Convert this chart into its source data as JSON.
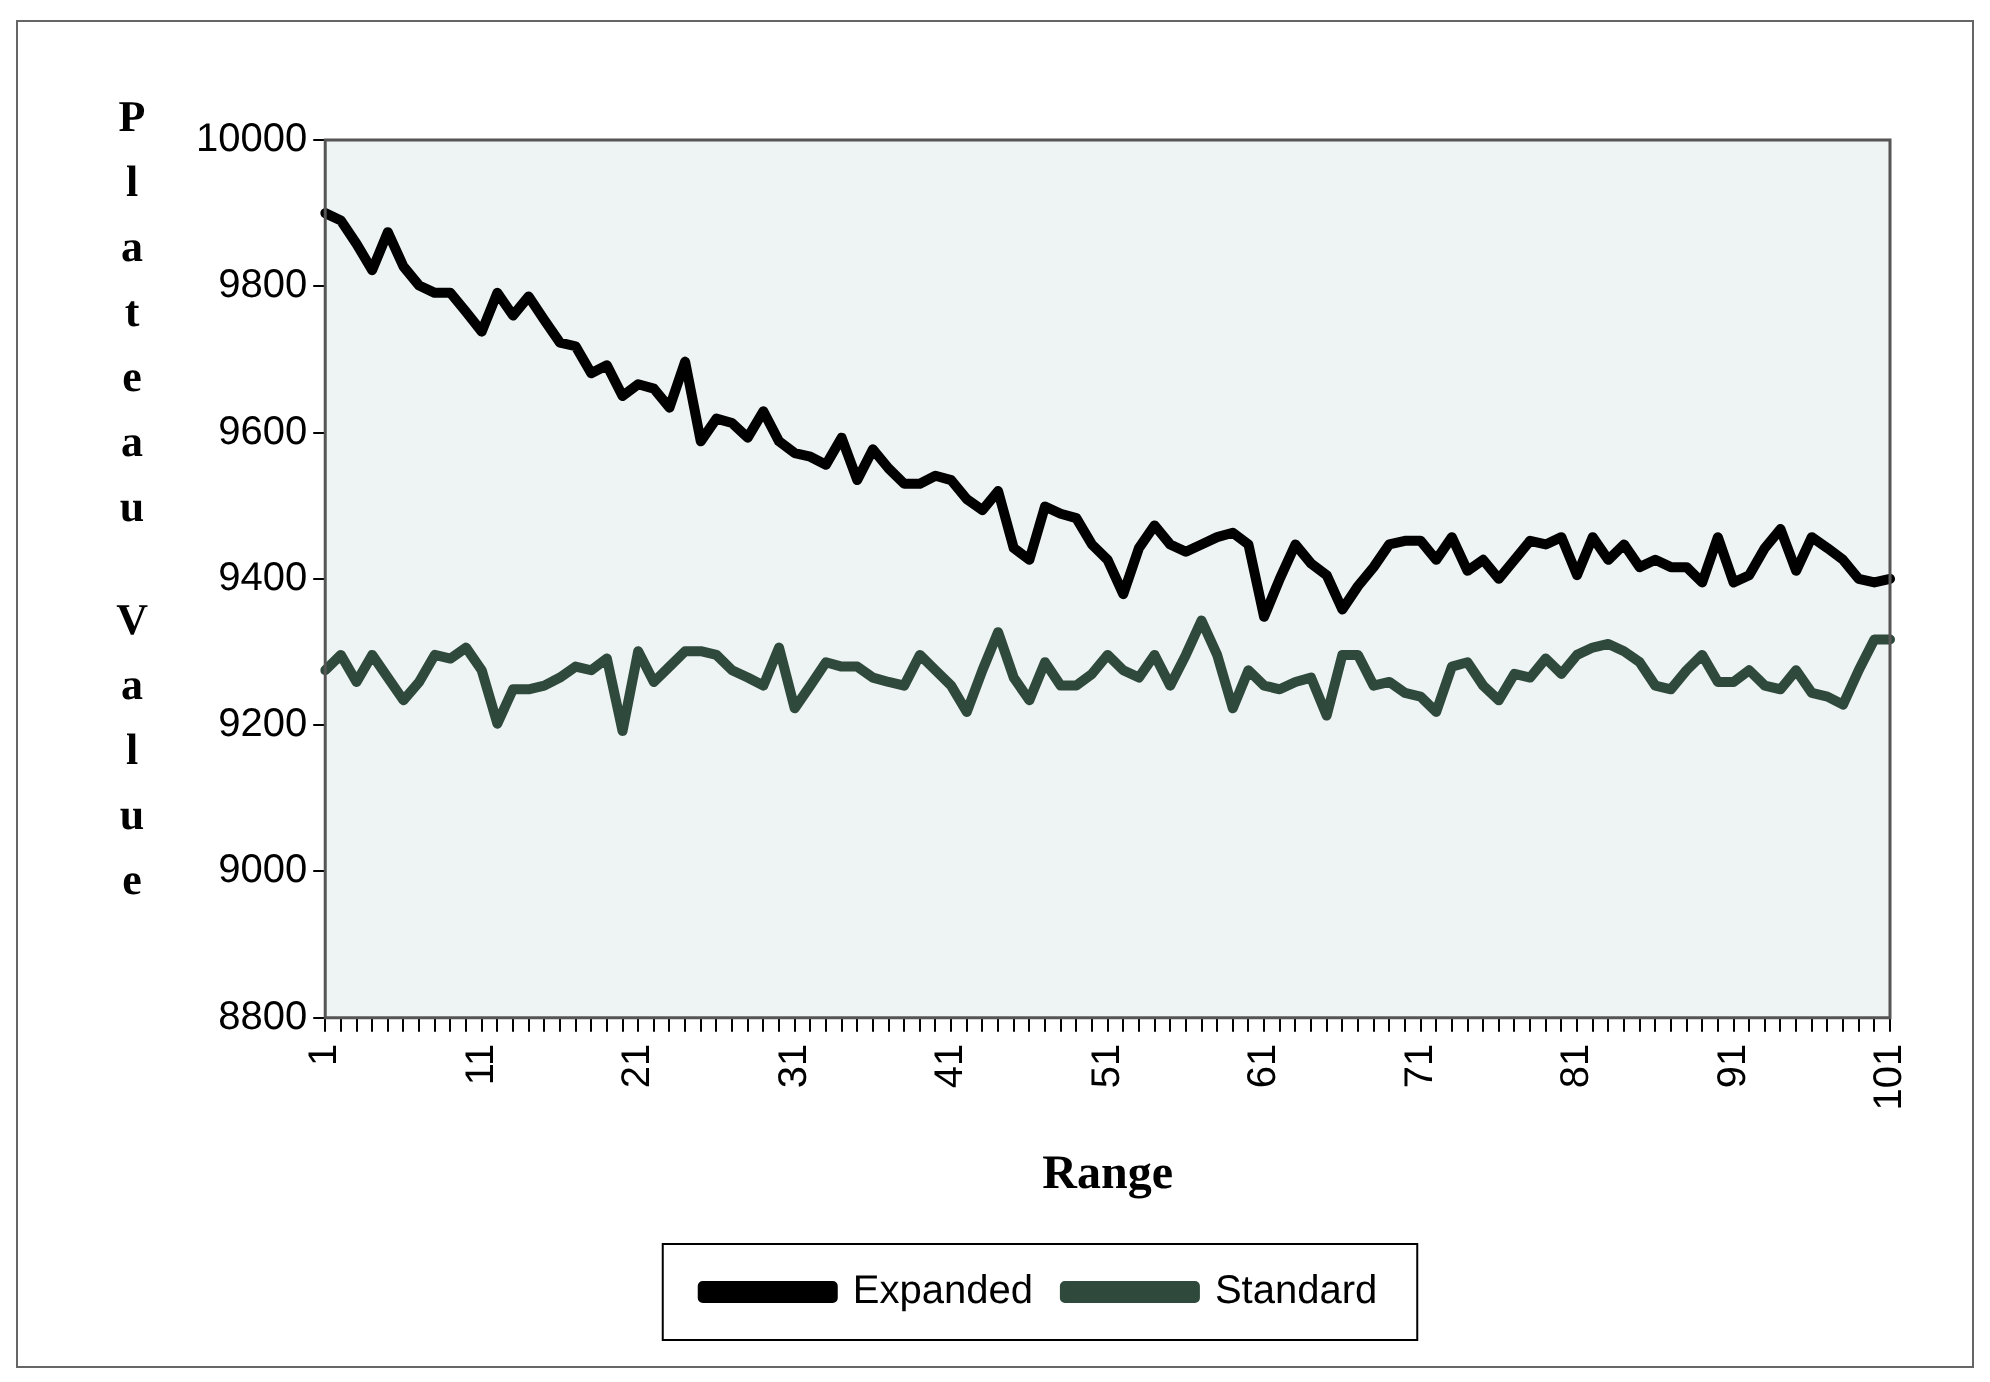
{
  "chart_data": {
    "type": "line",
    "xlabel": "Range",
    "ylabel": "Plateau Value",
    "categories": [
      "1",
      null,
      null,
      null,
      null,
      null,
      null,
      null,
      null,
      null,
      "11",
      null,
      null,
      null,
      null,
      null,
      null,
      null,
      null,
      null,
      "21",
      null,
      null,
      null,
      null,
      null,
      null,
      null,
      null,
      null,
      "31",
      null,
      null,
      null,
      null,
      null,
      null,
      null,
      null,
      null,
      "41",
      null,
      null,
      null,
      null,
      null,
      null,
      null,
      null,
      null,
      "51",
      null,
      null,
      null,
      null,
      null,
      null,
      null,
      null,
      null,
      "61",
      null,
      null,
      null,
      null,
      null,
      null,
      null,
      null,
      null,
      "71",
      null,
      null,
      null,
      null,
      null,
      null,
      null,
      null,
      null,
      "81",
      null,
      null,
      null,
      null,
      null,
      null,
      null,
      null,
      null,
      "91",
      null,
      null,
      null,
      null,
      null,
      null,
      null,
      null,
      null,
      "101"
    ],
    "series": [
      {
        "name": "Expanded",
        "color": "#000000",
        "values": [
          9900,
          9890,
          9858,
          9822,
          9874,
          9827,
          9801,
          9791,
          9791,
          9765,
          9738,
          9791,
          9760,
          9786,
          9754,
          9723,
          9718,
          9681,
          9692,
          9650,
          9666,
          9660,
          9634,
          9697,
          9588,
          9619,
          9613,
          9593,
          9629,
          9588,
          9572,
          9567,
          9556,
          9593,
          9535,
          9577,
          9551,
          9530,
          9530,
          9541,
          9535,
          9509,
          9494,
          9520,
          9442,
          9426,
          9499,
          9489,
          9483,
          9447,
          9426,
          9379,
          9442,
          9473,
          9447,
          9437,
          9447,
          9457,
          9463,
          9447,
          9348,
          9400,
          9447,
          9421,
          9405,
          9358,
          9390,
          9416,
          9447,
          9452,
          9452,
          9426,
          9457,
          9411,
          9426,
          9400,
          9426,
          9452,
          9447,
          9457,
          9405,
          9457,
          9426,
          9447,
          9416,
          9426,
          9416,
          9416,
          9395,
          9457,
          9395,
          9405,
          9442,
          9468,
          9411,
          9457,
          9442,
          9426,
          9400,
          9395,
          9400
        ]
      },
      {
        "name": "Standard",
        "color": "#2f4a3c",
        "values": [
          9275,
          9296,
          9259,
          9296,
          9265,
          9234,
          9259,
          9296,
          9291,
          9306,
          9275,
          9202,
          9249,
          9249,
          9254,
          9265,
          9280,
          9275,
          9291,
          9192,
          9301,
          9259,
          9280,
          9301,
          9301,
          9296,
          9275,
          9265,
          9254,
          9306,
          9223,
          9254,
          9286,
          9280,
          9280,
          9265,
          9259,
          9254,
          9296,
          9275,
          9254,
          9218,
          9275,
          9327,
          9265,
          9234,
          9286,
          9254,
          9254,
          9270,
          9296,
          9275,
          9265,
          9296,
          9254,
          9296,
          9343,
          9296,
          9223,
          9275,
          9254,
          9249,
          9259,
          9265,
          9213,
          9296,
          9296,
          9254,
          9259,
          9244,
          9239,
          9218,
          9280,
          9286,
          9254,
          9234,
          9270,
          9265,
          9291,
          9270,
          9296,
          9306,
          9311,
          9301,
          9286,
          9254,
          9249,
          9275,
          9296,
          9259,
          9259,
          9275,
          9254,
          9249,
          9275,
          9244,
          9239,
          9228,
          9275,
          9317,
          9317
        ]
      }
    ],
    "ylim": [
      8800,
      10000
    ],
    "yticks": [
      8800,
      9000,
      9200,
      9400,
      9600,
      9800,
      10000
    ],
    "grid": false,
    "legend": "bottom",
    "marker": "none",
    "line_style": "solid"
  }
}
